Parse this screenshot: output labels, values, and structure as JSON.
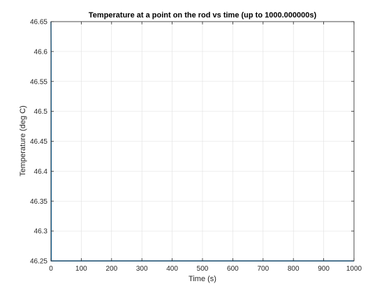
{
  "chart_data": {
    "type": "line",
    "title": "Temperature at a point on the rod vs time (up to 1000.000000s)",
    "xlabel": "Time (s)",
    "ylabel": "Temperature (deg C)",
    "xlim": [
      0,
      1000
    ],
    "ylim": [
      46.25,
      46.65
    ],
    "x_ticks": [
      "0",
      "100",
      "200",
      "300",
      "400",
      "500",
      "600",
      "700",
      "800",
      "900",
      "1000"
    ],
    "y_ticks": [
      "46.25",
      "46.3",
      "46.35",
      "46.4",
      "46.45",
      "46.5",
      "46.55",
      "46.6",
      "46.65"
    ],
    "grid": true,
    "series": [
      {
        "color": "#0072BD",
        "x": [
          0,
          0.5,
          1,
          2,
          1000
        ],
        "y": [
          46.65,
          46.6,
          46.25,
          46.25,
          46.25
        ]
      }
    ]
  }
}
